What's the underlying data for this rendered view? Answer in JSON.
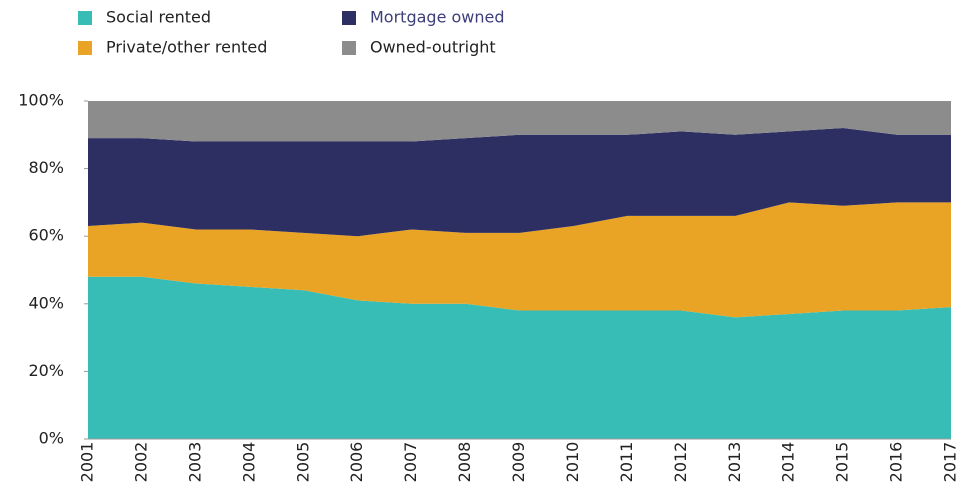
{
  "chart_data": {
    "type": "stacked-area",
    "categories": [
      "2001",
      "2002",
      "2003",
      "2004",
      "2005",
      "2006",
      "2007",
      "2008",
      "2009",
      "2010",
      "2011",
      "2012",
      "2013",
      "2014",
      "2015",
      "2016",
      "2017"
    ],
    "series": [
      {
        "name": "Social rented",
        "color": "#37bdb5",
        "values": [
          48,
          48,
          46,
          45,
          44,
          41,
          40,
          40,
          38,
          38,
          38,
          38,
          36,
          37,
          38,
          38,
          39
        ]
      },
      {
        "name": "Private/other rented",
        "color": "#e9a426",
        "values": [
          15,
          16,
          16,
          17,
          17,
          19,
          22,
          21,
          23,
          25,
          28,
          28,
          30,
          33,
          31,
          32,
          31
        ]
      },
      {
        "name": "Mortgage owned",
        "color": "#2d2e62",
        "values": [
          26,
          25,
          26,
          26,
          27,
          28,
          26,
          28,
          29,
          27,
          24,
          25,
          24,
          21,
          23,
          20,
          20
        ]
      },
      {
        "name": "Owned-outright",
        "color": "#8c8c8c",
        "values": [
          11,
          11,
          12,
          12,
          12,
          12,
          12,
          11,
          10,
          10,
          10,
          9,
          10,
          9,
          8,
          10,
          10
        ]
      }
    ],
    "ylim": [
      0,
      100
    ],
    "yticks": [
      {
        "value": 0,
        "label": "0%"
      },
      {
        "value": 20,
        "label": "20%"
      },
      {
        "value": 40,
        "label": "40%"
      },
      {
        "value": 60,
        "label": "60%"
      },
      {
        "value": 80,
        "label": "80%"
      },
      {
        "value": 100,
        "label": "100%"
      }
    ],
    "legend": "top-left"
  }
}
